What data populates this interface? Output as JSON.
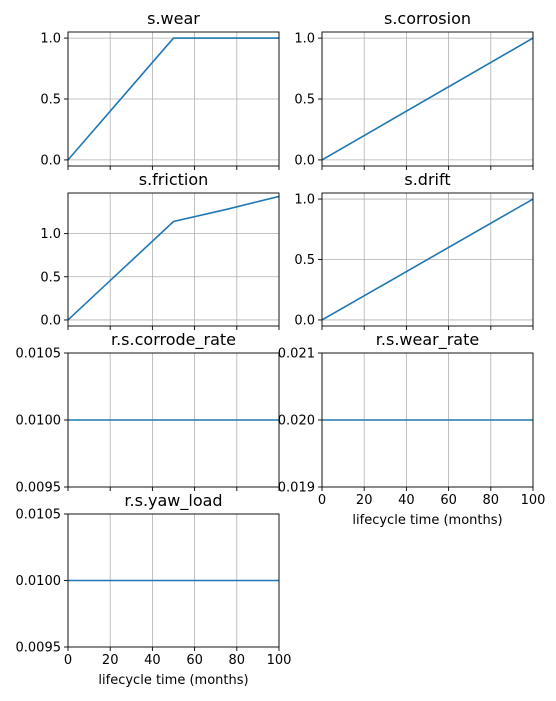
{
  "figure": {
    "xlabel": "lifecycle time (months)"
  },
  "chart_data": [
    {
      "type": "line",
      "title": "s.wear",
      "xlabel": "",
      "ylabel": "",
      "xlim": [
        0,
        100
      ],
      "ylim": [
        -0.05,
        1.05
      ],
      "yticks": [
        "0.0",
        "0.5",
        "1.0"
      ],
      "ytick_values": [
        0,
        0.5,
        1
      ],
      "xtick_values": [
        0,
        20,
        40,
        60,
        80,
        100
      ],
      "xtick_labels_shown": false,
      "grid": true,
      "series": [
        {
          "color": "#1f77b4",
          "x": [
            0,
            50,
            100
          ],
          "y": [
            0,
            1,
            1
          ]
        }
      ]
    },
    {
      "type": "line",
      "title": "s.corrosion",
      "xlabel": "",
      "ylabel": "",
      "xlim": [
        0,
        100
      ],
      "ylim": [
        -0.05,
        1.05
      ],
      "yticks": [
        "0.0",
        "0.5",
        "1.0"
      ],
      "ytick_values": [
        0,
        0.5,
        1
      ],
      "xtick_values": [
        0,
        20,
        40,
        60,
        80,
        100
      ],
      "xtick_labels_shown": false,
      "grid": true,
      "series": [
        {
          "color": "#1f77b4",
          "x": [
            0,
            100
          ],
          "y": [
            0,
            1
          ]
        }
      ]
    },
    {
      "type": "line",
      "title": "s.friction",
      "xlabel": "",
      "ylabel": "",
      "xlim": [
        0,
        100
      ],
      "ylim": [
        -0.07,
        1.47
      ],
      "yticks": [
        "0.0",
        "0.5",
        "1.0"
      ],
      "ytick_values": [
        0,
        0.5,
        1
      ],
      "xtick_values": [
        0,
        20,
        40,
        60,
        80,
        100
      ],
      "xtick_labels_shown": false,
      "grid": true,
      "series": [
        {
          "color": "#1f77b4",
          "x": [
            0,
            50,
            75,
            100
          ],
          "y": [
            0,
            1.14,
            1.28,
            1.43
          ]
        }
      ]
    },
    {
      "type": "line",
      "title": "s.drift",
      "xlabel": "",
      "ylabel": "",
      "xlim": [
        0,
        100
      ],
      "ylim": [
        -0.05,
        1.05
      ],
      "yticks": [
        "0.0",
        "0.5",
        "1.0"
      ],
      "ytick_values": [
        0,
        0.5,
        1
      ],
      "xtick_values": [
        0,
        20,
        40,
        60,
        80,
        100
      ],
      "xtick_labels_shown": false,
      "grid": true,
      "series": [
        {
          "color": "#1f77b4",
          "x": [
            0,
            100
          ],
          "y": [
            0,
            1
          ]
        }
      ]
    },
    {
      "type": "line",
      "title": "r.s.corrode_rate",
      "xlabel": "",
      "ylabel": "",
      "xlim": [
        0,
        100
      ],
      "ylim": [
        0.0095,
        0.0105
      ],
      "yticks": [
        "0.0095",
        "0.0100",
        "0.0105"
      ],
      "ytick_values": [
        0.0095,
        0.01,
        0.0105
      ],
      "xtick_values": [
        0,
        20,
        40,
        60,
        80,
        100
      ],
      "xtick_labels_shown": false,
      "grid": true,
      "series": [
        {
          "color": "#1f77b4",
          "x": [
            0,
            100
          ],
          "y": [
            0.01,
            0.01
          ]
        }
      ]
    },
    {
      "type": "line",
      "title": "r.s.wear_rate",
      "xlabel": "lifecycle time (months)",
      "ylabel": "",
      "xlim": [
        0,
        100
      ],
      "ylim": [
        0.019,
        0.021
      ],
      "yticks": [
        "0.019",
        "0.020",
        "0.021"
      ],
      "ytick_values": [
        0.019,
        0.02,
        0.021
      ],
      "xtick_values": [
        0,
        20,
        40,
        60,
        80,
        100
      ],
      "xticks": [
        "0",
        "20",
        "40",
        "60",
        "80",
        "100"
      ],
      "xtick_labels_shown": true,
      "grid": true,
      "series": [
        {
          "color": "#1f77b4",
          "x": [
            0,
            100
          ],
          "y": [
            0.02,
            0.02
          ]
        }
      ]
    },
    {
      "type": "line",
      "title": "r.s.yaw_load",
      "xlabel": "lifecycle time (months)",
      "ylabel": "",
      "xlim": [
        0,
        100
      ],
      "ylim": [
        0.0095,
        0.0105
      ],
      "yticks": [
        "0.0095",
        "0.0100",
        "0.0105"
      ],
      "ytick_values": [
        0.0095,
        0.01,
        0.0105
      ],
      "xtick_values": [
        0,
        20,
        40,
        60,
        80,
        100
      ],
      "xticks": [
        "0",
        "20",
        "40",
        "60",
        "80",
        "100"
      ],
      "xtick_labels_shown": true,
      "grid": true,
      "series": [
        {
          "color": "#1f77b4",
          "x": [
            0,
            100
          ],
          "y": [
            0.01,
            0.01
          ]
        }
      ]
    }
  ]
}
